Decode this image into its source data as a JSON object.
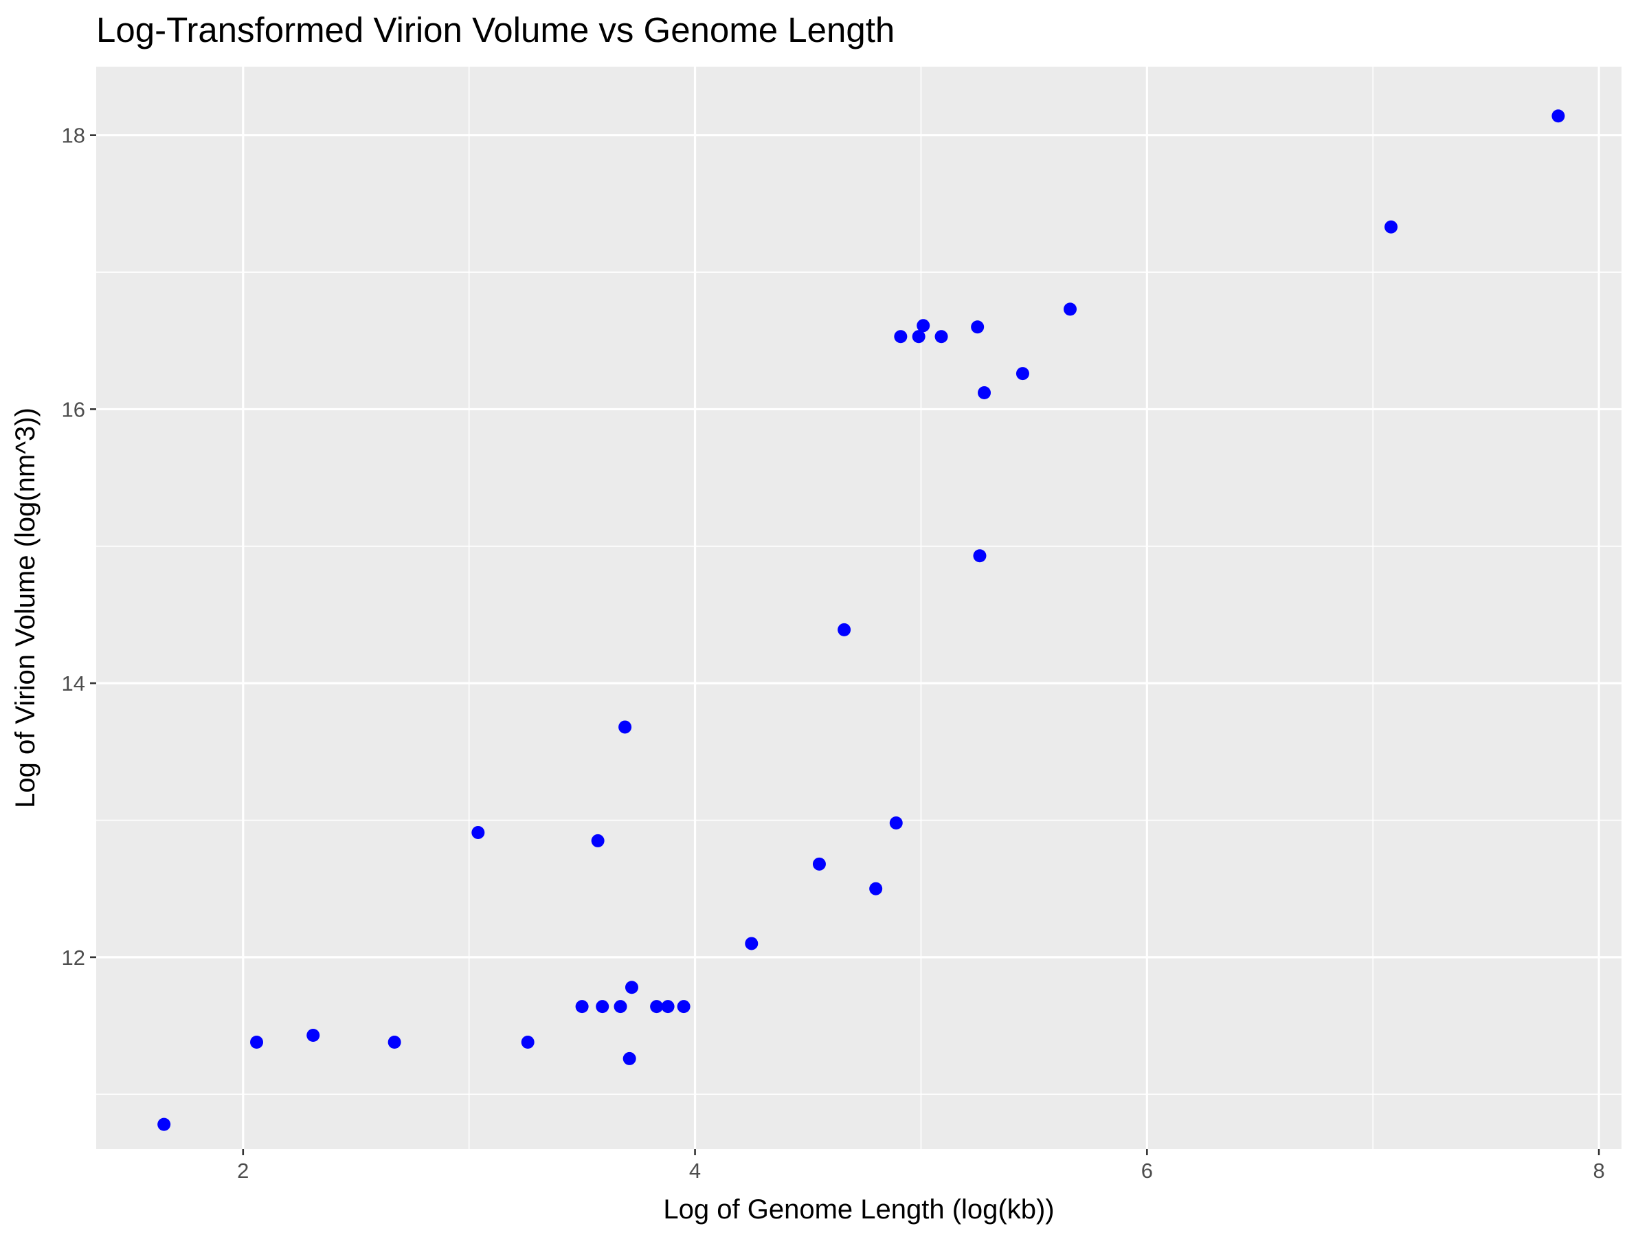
{
  "chart_data": {
    "type": "scatter",
    "title": "Log-Transformed Virion Volume vs Genome Length",
    "xlabel": "Log of Genome Length (log(kb))",
    "ylabel": "Log of Virion Volume (log(nm^3))",
    "xlim": [
      1.35,
      8.1
    ],
    "ylim": [
      10.6,
      18.5
    ],
    "x_ticks": [
      2,
      4,
      6,
      8
    ],
    "y_ticks": [
      12,
      14,
      16,
      18
    ],
    "grid": true,
    "point_color": "#0000ff",
    "panel_color": "#ebebeb",
    "points": [
      {
        "x": 1.65,
        "y": 10.78
      },
      {
        "x": 2.06,
        "y": 11.38
      },
      {
        "x": 2.31,
        "y": 11.43
      },
      {
        "x": 2.67,
        "y": 11.38
      },
      {
        "x": 3.04,
        "y": 12.91
      },
      {
        "x": 3.26,
        "y": 11.38
      },
      {
        "x": 3.5,
        "y": 11.64
      },
      {
        "x": 3.57,
        "y": 12.85
      },
      {
        "x": 3.59,
        "y": 11.64
      },
      {
        "x": 3.67,
        "y": 11.64
      },
      {
        "x": 3.69,
        "y": 13.68
      },
      {
        "x": 3.71,
        "y": 11.26
      },
      {
        "x": 3.72,
        "y": 11.78
      },
      {
        "x": 3.83,
        "y": 11.64
      },
      {
        "x": 3.88,
        "y": 11.64
      },
      {
        "x": 3.95,
        "y": 11.64
      },
      {
        "x": 4.25,
        "y": 12.1
      },
      {
        "x": 4.55,
        "y": 12.68
      },
      {
        "x": 4.66,
        "y": 14.39
      },
      {
        "x": 4.8,
        "y": 12.5
      },
      {
        "x": 4.89,
        "y": 12.98
      },
      {
        "x": 4.91,
        "y": 16.53
      },
      {
        "x": 4.99,
        "y": 16.53
      },
      {
        "x": 5.01,
        "y": 16.61
      },
      {
        "x": 5.09,
        "y": 16.53
      },
      {
        "x": 5.25,
        "y": 16.6
      },
      {
        "x": 5.26,
        "y": 14.93
      },
      {
        "x": 5.28,
        "y": 16.12
      },
      {
        "x": 5.45,
        "y": 16.26
      },
      {
        "x": 5.66,
        "y": 16.73
      },
      {
        "x": 7.08,
        "y": 17.33
      },
      {
        "x": 7.82,
        "y": 18.14
      }
    ]
  }
}
